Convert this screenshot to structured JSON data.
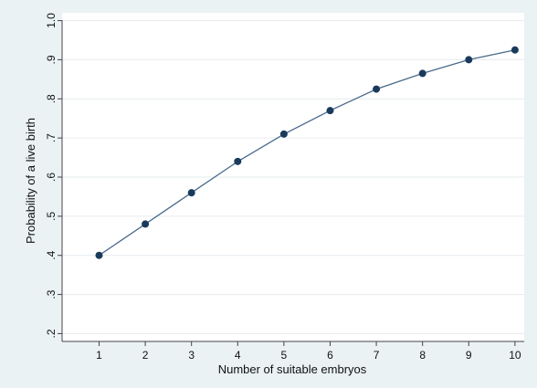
{
  "chart_data": {
    "type": "line",
    "title": "",
    "xlabel": "Number of suitable embryos",
    "ylabel": "Probability of a live birth",
    "x": [
      1,
      2,
      3,
      4,
      5,
      6,
      7,
      8,
      9,
      10
    ],
    "series": [
      {
        "values": [
          0.4,
          0.48,
          0.56,
          0.64,
          0.71,
          0.77,
          0.825,
          0.865,
          0.9,
          0.925
        ]
      }
    ],
    "xlim": [
      0.2,
      10.2
    ],
    "ylim": [
      0.18,
      1.02
    ],
    "xticks": [
      "1",
      "2",
      "3",
      "4",
      "5",
      "6",
      "7",
      "8",
      "9",
      "10"
    ],
    "yticks": [
      {
        "value": 0.2,
        "label": ".2"
      },
      {
        "value": 0.3,
        "label": ".3"
      },
      {
        "value": 0.4,
        "label": ".4"
      },
      {
        "value": 0.5,
        "label": ".5"
      },
      {
        "value": 0.6,
        "label": ".6"
      },
      {
        "value": 0.7,
        "label": ".7"
      },
      {
        "value": 0.8,
        "label": ".8"
      },
      {
        "value": 0.9,
        "label": ".9"
      },
      {
        "value": 1.0,
        "label": "1.0"
      }
    ],
    "grid": true,
    "legend": "none",
    "colors": {
      "line": "#4a6b8a",
      "marker": "#1a3a5c",
      "grid": "#e6ecef",
      "axis": "#444444",
      "background": "#eaf2f3",
      "plot_background": "#ffffff"
    }
  }
}
